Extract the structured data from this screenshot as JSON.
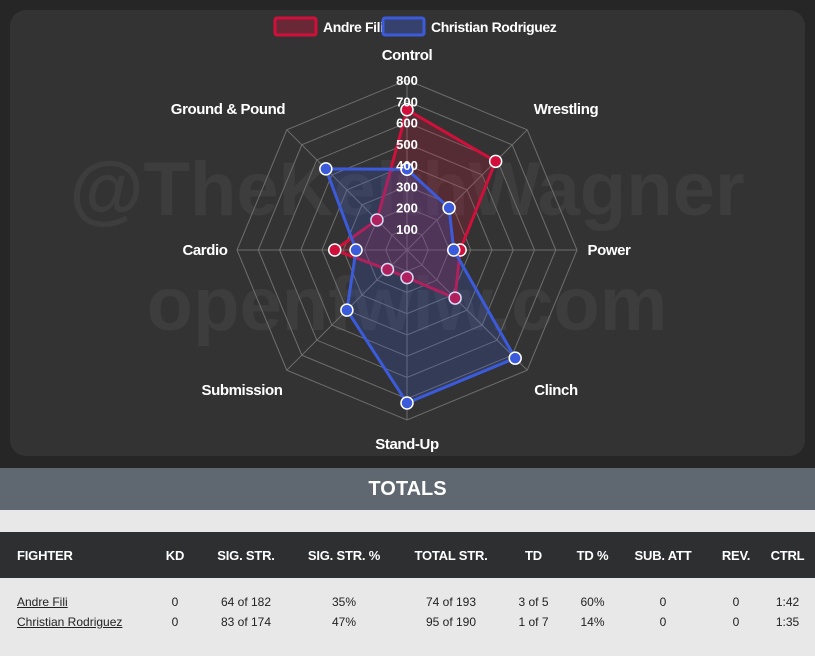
{
  "chart_data": {
    "type": "radar",
    "axes": [
      "Control",
      "Wrestling",
      "Power",
      "Clinch",
      "Stand-Up",
      "Submission",
      "Cardio",
      "Ground & Pound"
    ],
    "rlim": [
      0,
      800
    ],
    "ticks": [
      "100",
      "200",
      "300",
      "400",
      "500",
      "600",
      "700",
      "800"
    ],
    "grid": true,
    "legend_position": "top-center",
    "series": [
      {
        "name": "Andre Fili",
        "color": "#d0103a",
        "values": [
          660,
          590,
          250,
          320,
          130,
          130,
          340,
          200
        ]
      },
      {
        "name": "Christian Rodriguez",
        "color": "#3b5bdb",
        "values": [
          380,
          280,
          220,
          720,
          720,
          400,
          240,
          540
        ]
      }
    ]
  },
  "watermark": [
    "@TheKeithWagner",
    "openfwiw.com"
  ],
  "totals": {
    "title": "TOTALS",
    "headers": [
      "FIGHTER",
      "KD",
      "SIG. STR.",
      "SIG. STR. %",
      "TOTAL STR.",
      "TD",
      "TD %",
      "SUB. ATT",
      "REV.",
      "CTRL"
    ],
    "rows": [
      {
        "fighter": "Andre Fili",
        "kd": "0",
        "sig_str": "64 of 182",
        "sig_str_pct": "35%",
        "total_str": "74 of 193",
        "td": "3 of 5",
        "td_pct": "60%",
        "sub_att": "0",
        "rev": "0",
        "ctrl": "1:42"
      },
      {
        "fighter": "Christian Rodriguez",
        "kd": "0",
        "sig_str": "83 of 174",
        "sig_str_pct": "47%",
        "total_str": "95 of 190",
        "td": "1 of 7",
        "td_pct": "14%",
        "sub_att": "0",
        "rev": "0",
        "ctrl": "1:35"
      }
    ]
  }
}
